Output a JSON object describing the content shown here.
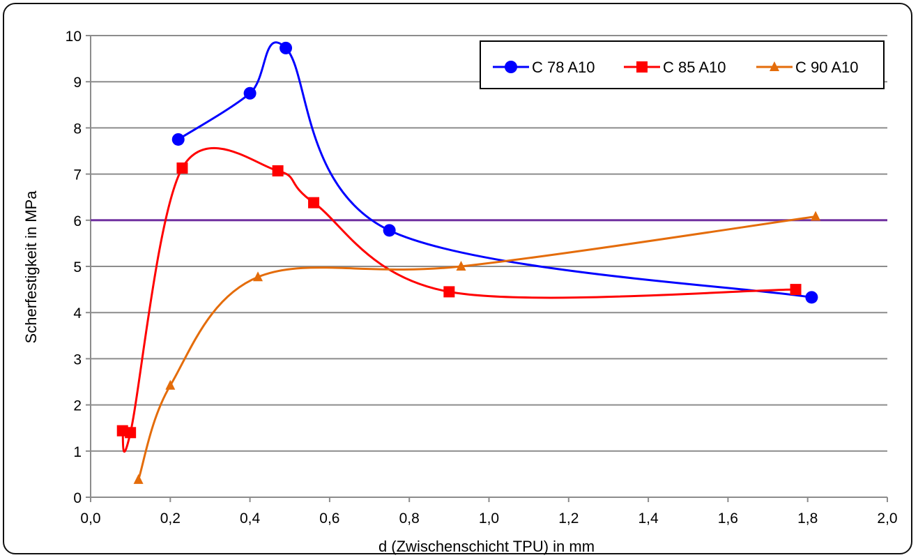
{
  "chart_data": {
    "type": "line",
    "title": "",
    "xlabel": "d (Zwischenschicht TPU) in mm",
    "ylabel": "Scherfestigkeit in MPa",
    "xlim": [
      0,
      2
    ],
    "ylim": [
      0,
      10
    ],
    "x_ticks": [
      "0,0",
      "0,2",
      "0,4",
      "0,6",
      "0,8",
      "1,0",
      "1,2",
      "1,4",
      "1,6",
      "1,8",
      "2,0"
    ],
    "y_ticks": [
      "0",
      "1",
      "2",
      "3",
      "4",
      "5",
      "6",
      "7",
      "8",
      "9",
      "10"
    ],
    "grid": "horizontal",
    "legend_position": "top-right",
    "reference_line": {
      "y": 6,
      "color": "#7030a0"
    },
    "series": [
      {
        "name": "C 78 A10",
        "color": "#0000ff",
        "marker": "circle",
        "x": [
          0.22,
          0.4,
          0.49,
          0.75,
          1.81
        ],
        "y": [
          7.75,
          8.75,
          9.73,
          5.78,
          4.33
        ]
      },
      {
        "name": "C 85 A10",
        "color": "#ff0000",
        "marker": "square",
        "x": [
          0.08,
          0.1,
          0.23,
          0.47,
          0.56,
          0.9,
          1.77
        ],
        "y": [
          1.44,
          1.4,
          7.13,
          7.07,
          6.38,
          4.45,
          4.5
        ]
      },
      {
        "name": "C 90 A10",
        "color": "#e46c0a",
        "marker": "triangle",
        "x": [
          0.12,
          0.2,
          0.42,
          0.93,
          1.82
        ],
        "y": [
          0.38,
          2.42,
          4.77,
          5.0,
          6.08
        ]
      }
    ]
  }
}
